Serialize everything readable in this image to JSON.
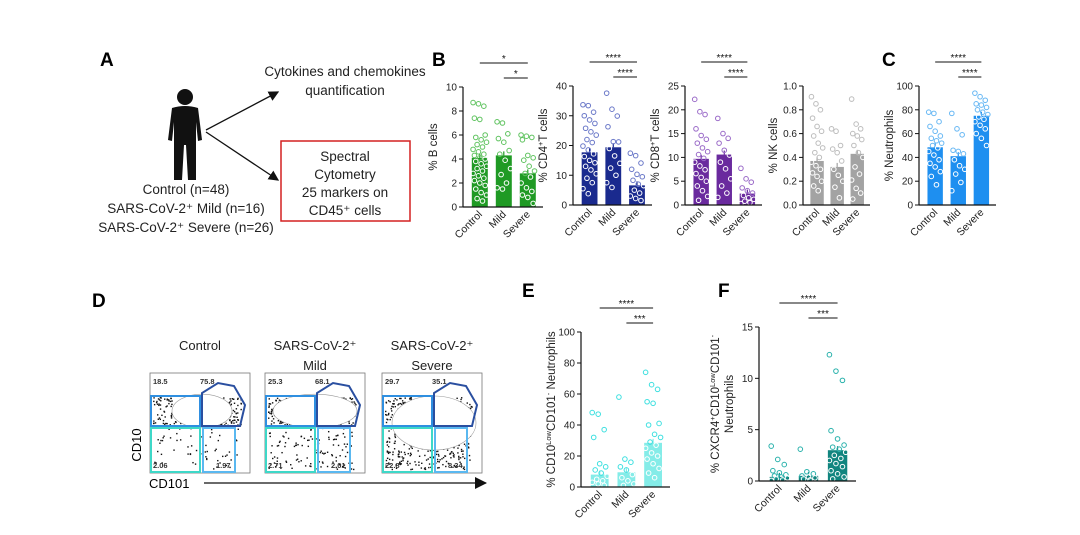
{
  "panel_labels": {
    "a": "A",
    "b": "B",
    "c": "C",
    "d": "D",
    "e": "E",
    "f": "F"
  },
  "panel_a": {
    "cytokines_line1": "Cytokines and chemokines",
    "cytokines_line2": "quantification",
    "box_lines": [
      "Spectral",
      "Cytometry",
      "25 markers on",
      "CD45⁺ cells"
    ],
    "cohorts": [
      "Control (n=48)",
      "SARS-CoV-2⁺ Mild (n=16)",
      "SARS-CoV-2⁺ Severe (n=26)"
    ],
    "box_color": "#d42020"
  },
  "panel_d": {
    "x_axis_label": "CD101",
    "y_axis_label": "CD10",
    "plots": [
      {
        "title_line1": "Control",
        "title_line2": "",
        "upper_left": "18.5",
        "upper_right": "75.8",
        "lower_left": "2.06",
        "lower_right": "1.97"
      },
      {
        "title_line1": "SARS-CoV-2⁺",
        "title_line2": "Mild",
        "upper_left": "25.3",
        "upper_right": "68.1",
        "lower_left": "2.71",
        "lower_right": "2.01"
      },
      {
        "title_line1": "SARS-CoV-2⁺",
        "title_line2": "Severe",
        "upper_left": "29.7",
        "upper_right": "35.1",
        "lower_left": "22.8",
        "lower_right": "8.34"
      }
    ],
    "gate_colors": {
      "upper_left": "#2f8fe0",
      "upper_right": "#2a4fa0",
      "lower_left": "#3ed8c8",
      "lower_right": "#5ab8f0"
    }
  },
  "chart_data": [
    {
      "id": "b-cells",
      "panel": "B",
      "type": "bar",
      "categories": [
        "Control",
        "Mild",
        "Severe"
      ],
      "ylabel_parts": [
        {
          "t": "% B cells"
        }
      ],
      "ylim": [
        0,
        10
      ],
      "yticks": [
        "0",
        "2",
        "4",
        "6",
        "8",
        "10"
      ],
      "bar_color": "#1f9a24",
      "point_color": "#5fc35f",
      "means": [
        4.1,
        4.3,
        2.8
      ],
      "points": [
        [
          8.7,
          8.6,
          8.4,
          7.4,
          7.3,
          6.0,
          5.8,
          5.6,
          5.4,
          5.2,
          5.0,
          4.8,
          4.6,
          4.4,
          4.3,
          4.1,
          4.0,
          3.8,
          3.6,
          3.4,
          3.2,
          3.0,
          2.8,
          2.6,
          2.4,
          2.2,
          2.0,
          1.8,
          1.5,
          1.2,
          1.0,
          0.7,
          0.5
        ],
        [
          7.1,
          7.0,
          6.1,
          5.7,
          5.4,
          4.7,
          4.4,
          3.9,
          3.2,
          2.7,
          2.0,
          1.6,
          1.5
        ],
        [
          6.0,
          5.9,
          5.8,
          5.6,
          4.3,
          4.1,
          3.9,
          3.4,
          3.0,
          2.8,
          2.5,
          2.0,
          1.6,
          1.3,
          1.0,
          0.8,
          0.3
        ]
      ],
      "significance": [
        {
          "from": "Control",
          "to": "Severe",
          "label": "*"
        },
        {
          "from": "Mild",
          "to": "Severe",
          "label": "*"
        }
      ]
    },
    {
      "id": "cd4-t-cells",
      "panel": "B",
      "type": "bar",
      "categories": [
        "Control",
        "Mild",
        "Severe"
      ],
      "ylabel_parts": [
        {
          "t": "% CD4"
        },
        {
          "t": "+",
          "sup": true
        },
        {
          "t": "T cells"
        }
      ],
      "ylim": [
        0,
        40
      ],
      "yticks": [
        "0",
        "10",
        "20",
        "30",
        "40"
      ],
      "bar_color": "#1a2a8e",
      "point_color": "#6a78c8",
      "means": [
        17.7,
        19.4,
        6.6
      ],
      "points": [
        [
          33.7,
          33.4,
          31.2,
          30.0,
          28.6,
          27.4,
          25.8,
          24.6,
          23.5,
          22.0,
          21.0,
          19.8,
          18.5,
          17.2,
          16.3,
          15.0,
          14.2,
          13.0,
          11.8,
          10.5,
          9.0,
          7.5,
          5.5,
          3.8
        ],
        [
          37.6,
          32.2,
          29.9,
          26.3,
          21.3,
          21.2,
          19.0,
          16.5,
          14.0,
          12.4,
          10.0,
          7.5,
          5.9
        ],
        [
          17.4,
          16.6,
          14.1,
          12.0,
          10.3,
          9.5,
          8.3,
          7.0,
          6.5,
          5.0,
          4.0,
          3.0,
          2.2,
          1.5
        ]
      ],
      "significance": [
        {
          "from": "Control",
          "to": "Severe",
          "label": "****"
        },
        {
          "from": "Mild",
          "to": "Severe",
          "label": "****"
        }
      ]
    },
    {
      "id": "cd8-t-cells",
      "panel": "B",
      "type": "bar",
      "categories": [
        "Control",
        "Mild",
        "Severe"
      ],
      "ylabel_parts": [
        {
          "t": "% CD8"
        },
        {
          "t": "+",
          "sup": true
        },
        {
          "t": "T cells"
        }
      ],
      "ylim": [
        0,
        25
      ],
      "yticks": [
        "0",
        "5",
        "10",
        "15",
        "20",
        "25"
      ],
      "bar_color": "#6a2a9e",
      "point_color": "#9a6ac8",
      "means": [
        9.7,
        10.6,
        2.4
      ],
      "points": [
        [
          22.2,
          19.6,
          19.0,
          16.0,
          14.6,
          13.8,
          13.0,
          12.0,
          11.2,
          10.6,
          9.8,
          9.0,
          8.2,
          7.4,
          6.6,
          5.8,
          5.0,
          4.0,
          3.0,
          1.8,
          1.0
        ],
        [
          18.2,
          15.0,
          14.0,
          13.0,
          11.5,
          10.5,
          9.0,
          7.6,
          5.5,
          4.0,
          2.5,
          1.6
        ],
        [
          7.7,
          5.5,
          4.8,
          3.6,
          3.0,
          2.5,
          2.0,
          1.5,
          1.2,
          0.8,
          0.5,
          0.3
        ]
      ],
      "significance": [
        {
          "from": "Control",
          "to": "Severe",
          "label": "****"
        },
        {
          "from": "Mild",
          "to": "Severe",
          "label": "****"
        }
      ]
    },
    {
      "id": "nk-cells",
      "panel": "B",
      "type": "bar",
      "categories": [
        "Control",
        "Mild",
        "Severe"
      ],
      "ylabel_parts": [
        {
          "t": "% NK cells"
        }
      ],
      "ylim": [
        0,
        1.0
      ],
      "yticks": [
        "0.0",
        "0.2",
        "0.4",
        "0.6",
        "0.8",
        "1.0"
      ],
      "bar_color": "#a3a3a3",
      "point_color": "#bdbdbd",
      "means": [
        0.37,
        0.32,
        0.43
      ],
      "points": [
        [
          0.91,
          0.85,
          0.8,
          0.73,
          0.66,
          0.62,
          0.58,
          0.52,
          0.48,
          0.44,
          0.4,
          0.36,
          0.33,
          0.3,
          0.27,
          0.24,
          0.2,
          0.16,
          0.12
        ],
        [
          0.64,
          0.62,
          0.5,
          0.47,
          0.44,
          0.37,
          0.3,
          0.25,
          0.2,
          0.15,
          0.06
        ],
        [
          0.89,
          0.68,
          0.64,
          0.6,
          0.58,
          0.55,
          0.5,
          0.44,
          0.4,
          0.32,
          0.26,
          0.21,
          0.14,
          0.1,
          0.05
        ]
      ],
      "significance": []
    },
    {
      "id": "neutrophils",
      "panel": "C",
      "type": "bar",
      "categories": [
        "Control",
        "Mild",
        "Severe"
      ],
      "ylabel_parts": [
        {
          "t": "% Neutrophils"
        }
      ],
      "ylim": [
        0,
        100
      ],
      "yticks": [
        "0",
        "20",
        "40",
        "60",
        "80",
        "100"
      ],
      "bar_color": "#1e8ff0",
      "point_color": "#68b8f4",
      "means": [
        48.5,
        41,
        75
      ],
      "points": [
        [
          78,
          77,
          70,
          66,
          62,
          58,
          56,
          54,
          52,
          50,
          48,
          45,
          42,
          38,
          35,
          32,
          28,
          24,
          17
        ],
        [
          77,
          64,
          59,
          46,
          45,
          43,
          38,
          33,
          30,
          26,
          19,
          12
        ],
        [
          94,
          91,
          88,
          85,
          84,
          82,
          80,
          78,
          76,
          74,
          72,
          70,
          67,
          64,
          60,
          56,
          50
        ]
      ],
      "significance": [
        {
          "from": "Control",
          "to": "Severe",
          "label": "****"
        },
        {
          "from": "Mild",
          "to": "Severe",
          "label": "****"
        }
      ]
    },
    {
      "id": "cd10low-cd101neg-neutrophils",
      "panel": "E",
      "type": "bar",
      "categories": [
        "Control",
        "Mild",
        "Severe"
      ],
      "ylabel_parts": [
        {
          "t": "% CD10"
        },
        {
          "t": "Low",
          "sup": true
        },
        {
          "t": "CD101"
        },
        {
          "t": "-",
          "sup": true
        },
        {
          "t": " Neutrophils"
        }
      ],
      "ylim": [
        0,
        100
      ],
      "yticks": [
        "0",
        "20",
        "40",
        "60",
        "80",
        "100"
      ],
      "bar_color": "#84ece8",
      "point_color": "#3ee0e0",
      "means": [
        8,
        9.5,
        28.5
      ],
      "points": [
        [
          48,
          47,
          37,
          32,
          15,
          13,
          11,
          9,
          7,
          5,
          4,
          3,
          2,
          1
        ],
        [
          58,
          18,
          16,
          13,
          11,
          8,
          6,
          4,
          2,
          1
        ],
        [
          74,
          66,
          63,
          55,
          54,
          41,
          40,
          34,
          32,
          29,
          27,
          25,
          22,
          20,
          18,
          15,
          12,
          9,
          6
        ]
      ],
      "significance": [
        {
          "from": "Control",
          "to": "Severe",
          "label": "****"
        },
        {
          "from": "Mild",
          "to": "Severe",
          "label": "***"
        }
      ]
    },
    {
      "id": "cxcr4-cd10low-cd101neg-neutrophils",
      "panel": "F",
      "type": "bar",
      "categories": [
        "Control",
        "Mild",
        "Severe"
      ],
      "ylabel_parts": [
        {
          "t": "% CXCR4"
        },
        {
          "t": "+",
          "sup": true
        },
        {
          "t": "CD10"
        },
        {
          "t": "Low",
          "sup": true
        },
        {
          "t": "CD101"
        },
        {
          "t": "-",
          "sup": true
        }
      ],
      "ylabel_line2": "Neutrophils",
      "ylim": [
        0,
        15
      ],
      "yticks": [
        "0",
        "5",
        "10",
        "15"
      ],
      "bar_color": "#11857f",
      "point_color": "#2ab2ac",
      "means": [
        0.4,
        0.5,
        3.0
      ],
      "points": [
        [
          3.4,
          2.1,
          1.6,
          1.0,
          0.8,
          0.6,
          0.5,
          0.4,
          0.3,
          0.2,
          0.1,
          0.05
        ],
        [
          3.1,
          0.9,
          0.7,
          0.5,
          0.4,
          0.3,
          0.2,
          0.1
        ],
        [
          12.3,
          10.7,
          9.8,
          4.9,
          4.1,
          3.5,
          3.3,
          3.1,
          2.8,
          2.5,
          2.2,
          2.0,
          1.7,
          1.4,
          1.0,
          0.7,
          0.4,
          0.2
        ]
      ],
      "significance": [
        {
          "from": "Control",
          "to": "Severe",
          "label": "****"
        },
        {
          "from": "Mild",
          "to": "Severe",
          "label": "***"
        }
      ]
    }
  ]
}
